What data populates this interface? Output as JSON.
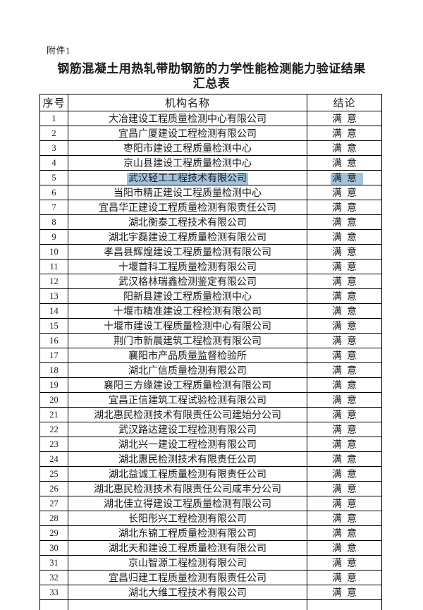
{
  "page": {
    "background": "#ffffff"
  },
  "document": {
    "attachment_label": "附件1",
    "title_line1": "钢筋混凝土用热轧带肋钢筋的力学性能检测能力验证结果",
    "title_line2": "汇总表"
  },
  "colors": {
    "border": "#000000",
    "text": "#1a1a1a",
    "selection_highlight": "#a3c2dd"
  },
  "table": {
    "columns": [
      "序号",
      "机构名称",
      "结论"
    ],
    "highlighted_row_no": "5",
    "rows": [
      {
        "no": "1",
        "name": "大冶建设工程质量检测中心有限公司",
        "result": "满意"
      },
      {
        "no": "2",
        "name": "宜昌广厦建设工程检测有限公司",
        "result": "满意"
      },
      {
        "no": "3",
        "name": "枣阳市建设工程质量检测中心",
        "result": "满意"
      },
      {
        "no": "4",
        "name": "京山县建设工程质量检测中心",
        "result": "满意"
      },
      {
        "no": "5",
        "name": "武汉轻工工程技术有限公司",
        "result": "满意"
      },
      {
        "no": "6",
        "name": "当阳市精正建设工程质量检测中心",
        "result": "满意"
      },
      {
        "no": "7",
        "name": "宜昌华正建设工程质量检测有限责任公司",
        "result": "满意"
      },
      {
        "no": "8",
        "name": "湖北衡泰工程技术有限公司",
        "result": "满意"
      },
      {
        "no": "9",
        "name": "湖北宇磊建设工程质量检测有限公司",
        "result": "满意"
      },
      {
        "no": "10",
        "name": "孝昌县辉煌建设工程质量检测有限公司",
        "result": "满意"
      },
      {
        "no": "11",
        "name": "十堰首科工程质量检测有限公司",
        "result": "满意"
      },
      {
        "no": "12",
        "name": "武汉格林瑞鑫检测鉴定有限公司",
        "result": "满意"
      },
      {
        "no": "13",
        "name": "阳新县建设工程质量检测中心",
        "result": "满意"
      },
      {
        "no": "14",
        "name": "十堰市精准建设工程检测有限公司",
        "result": "满意"
      },
      {
        "no": "15",
        "name": "十堰市建设工程质量检测中心有限公司",
        "result": "满意"
      },
      {
        "no": "16",
        "name": "荆门市新晨建筑工程检测有限公司",
        "result": "满意"
      },
      {
        "no": "17",
        "name": "襄阳市产品质量监督检验所",
        "result": "满意"
      },
      {
        "no": "18",
        "name": "湖北广信质量检测有限公司",
        "result": "满意"
      },
      {
        "no": "19",
        "name": "襄阳三方缘建设工程质量检测有限公司",
        "result": "满意"
      },
      {
        "no": "20",
        "name": "宜昌正信建筑工程试验检测有限公司",
        "result": "满意"
      },
      {
        "no": "21",
        "name": "湖北惠民检测技术有限责任公司建始分公司",
        "result": "满意"
      },
      {
        "no": "22",
        "name": "武汉路达建设工程检测有限公司",
        "result": "满意"
      },
      {
        "no": "23",
        "name": "湖北兴一建设工程检测有限公司",
        "result": "满意"
      },
      {
        "no": "24",
        "name": "湖北惠民检测技术有限责任公司",
        "result": "满意"
      },
      {
        "no": "25",
        "name": "湖北益诚工程质量检测有限责任公司",
        "result": "满意"
      },
      {
        "no": "26",
        "name": "湖北惠民检测技术有限责任公司咸丰分公司",
        "result": "满意"
      },
      {
        "no": "27",
        "name": "湖北佳立得建设工程质量检测有限公司",
        "result": "满意"
      },
      {
        "no": "28",
        "name": "长阳彤兴工程检测有限公司",
        "result": "满意"
      },
      {
        "no": "29",
        "name": "湖北东锦工程质量检测有限公司",
        "result": "满意"
      },
      {
        "no": "30",
        "name": "湖北天和建设工程质量检测有限公司",
        "result": "满意"
      },
      {
        "no": "31",
        "name": "京山智源工程检测有限公司",
        "result": "满意"
      },
      {
        "no": "32",
        "name": "宜昌归建工程质量检测有限责任公司",
        "result": "满意"
      },
      {
        "no": "33",
        "name": "湖北大维工程技术有限公司",
        "result": "满意"
      }
    ]
  }
}
